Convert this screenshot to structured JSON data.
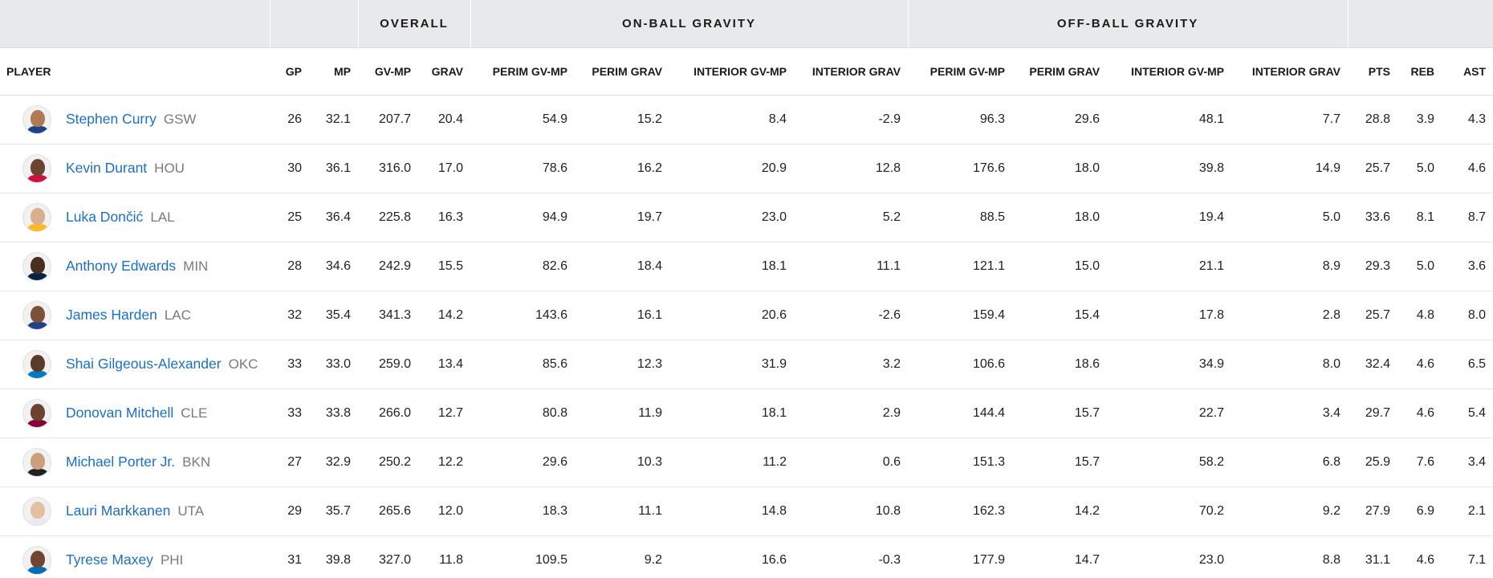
{
  "groups": {
    "overall": "OVERALL",
    "on_ball": "ON-BALL GRAVITY",
    "off_ball": "OFF-BALL GRAVITY"
  },
  "columns": [
    "PLAYER",
    "GP",
    "MP",
    "GV-MP",
    "GRAV",
    "PERIM GV-MP",
    "PERIM GRAV",
    "INTERIOR GV-MP",
    "INTERIOR GRAV",
    "PERIM GV-MP",
    "PERIM GRAV",
    "INTERIOR GV-MP",
    "INTERIOR GRAV",
    "PTS",
    "REB",
    "AST"
  ],
  "rows": [
    {
      "name": "Stephen Curry",
      "team": "GSW",
      "skin": "#b07a55",
      "jersey": "#1d428a",
      "stats": [
        "26",
        "32.1",
        "207.7",
        "20.4",
        "54.9",
        "15.2",
        "8.4",
        "-2.9",
        "96.3",
        "29.6",
        "48.1",
        "7.7",
        "28.8",
        "3.9",
        "4.3"
      ]
    },
    {
      "name": "Kevin Durant",
      "team": "HOU",
      "skin": "#6b4430",
      "jersey": "#ce1141",
      "stats": [
        "30",
        "36.1",
        "316.0",
        "17.0",
        "78.6",
        "16.2",
        "20.9",
        "12.8",
        "176.6",
        "18.0",
        "39.8",
        "14.9",
        "25.7",
        "5.0",
        "4.6"
      ]
    },
    {
      "name": "Luka Dončić",
      "team": "LAL",
      "skin": "#d9b08c",
      "jersey": "#fdb927",
      "stats": [
        "25",
        "36.4",
        "225.8",
        "16.3",
        "94.9",
        "19.7",
        "23.0",
        "5.2",
        "88.5",
        "18.0",
        "19.4",
        "5.0",
        "33.6",
        "8.1",
        "8.7"
      ]
    },
    {
      "name": "Anthony Edwards",
      "team": "MIN",
      "skin": "#4a2e22",
      "jersey": "#0c2340",
      "stats": [
        "28",
        "34.6",
        "242.9",
        "15.5",
        "82.6",
        "18.4",
        "18.1",
        "11.1",
        "121.1",
        "15.0",
        "21.1",
        "8.9",
        "29.3",
        "5.0",
        "3.6"
      ]
    },
    {
      "name": "James Harden",
      "team": "LAC",
      "skin": "#7a5038",
      "jersey": "#1d428a",
      "stats": [
        "32",
        "35.4",
        "341.3",
        "14.2",
        "143.6",
        "16.1",
        "20.6",
        "-2.6",
        "159.4",
        "15.4",
        "17.8",
        "2.8",
        "25.7",
        "4.8",
        "8.0"
      ]
    },
    {
      "name": "Shai Gilgeous-Alexander",
      "team": "OKC",
      "skin": "#5a3a28",
      "jersey": "#007ac1",
      "stats": [
        "33",
        "33.0",
        "259.0",
        "13.4",
        "85.6",
        "12.3",
        "31.9",
        "3.2",
        "106.6",
        "18.6",
        "34.9",
        "8.0",
        "32.4",
        "4.6",
        "6.5"
      ]
    },
    {
      "name": "Donovan Mitchell",
      "team": "CLE",
      "skin": "#6a4430",
      "jersey": "#860038",
      "stats": [
        "33",
        "33.8",
        "266.0",
        "12.7",
        "80.8",
        "11.9",
        "18.1",
        "2.9",
        "144.4",
        "15.7",
        "22.7",
        "3.4",
        "29.7",
        "4.6",
        "5.4"
      ]
    },
    {
      "name": "Michael Porter Jr.",
      "team": "BKN",
      "skin": "#c9a07e",
      "jersey": "#222222",
      "stats": [
        "27",
        "32.9",
        "250.2",
        "12.2",
        "29.6",
        "10.3",
        "11.2",
        "0.6",
        "151.3",
        "15.7",
        "58.2",
        "6.8",
        "25.9",
        "7.6",
        "3.4"
      ]
    },
    {
      "name": "Lauri Markkanen",
      "team": "UTA",
      "skin": "#e2c0a0",
      "jersey": "#e9e9f2",
      "stats": [
        "29",
        "35.7",
        "265.6",
        "12.0",
        "18.3",
        "11.1",
        "14.8",
        "10.8",
        "162.3",
        "14.2",
        "70.2",
        "9.2",
        "27.9",
        "6.9",
        "2.1"
      ]
    },
    {
      "name": "Tyrese Maxey",
      "team": "PHI",
      "skin": "#6e4632",
      "jersey": "#006bb6",
      "stats": [
        "31",
        "39.8",
        "327.0",
        "11.8",
        "109.5",
        "9.2",
        "16.6",
        "-0.3",
        "177.9",
        "14.7",
        "23.0",
        "8.8",
        "31.1",
        "4.6",
        "7.1"
      ]
    }
  ]
}
